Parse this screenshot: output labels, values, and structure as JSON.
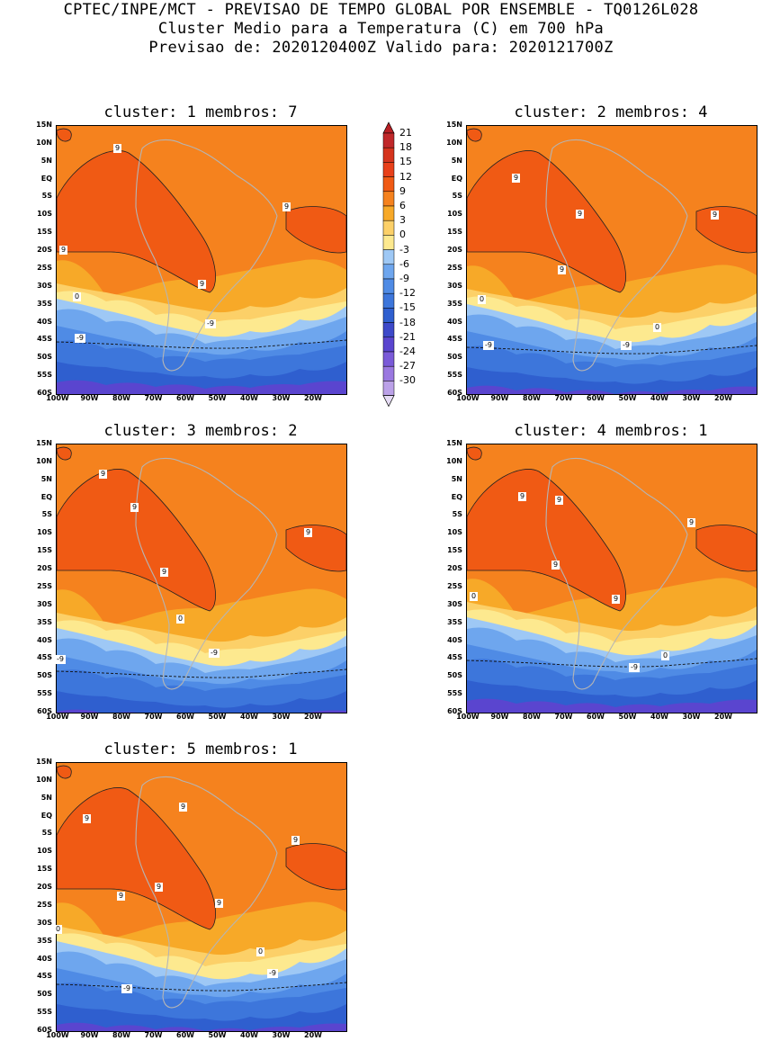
{
  "header": {
    "line1": "CPTEC/INPE/MCT - PREVISAO DE TEMPO GLOBAL POR ENSEMBLE - TQ0126L028",
    "line2": "Cluster Medio para a Temperatura (C) em 700 hPa",
    "line3": "Previsao de: 2020120400Z   Valido para: 2020121700Z"
  },
  "lat_ticks": [
    "15N",
    "10N",
    "5N",
    "EQ",
    "5S",
    "10S",
    "15S",
    "20S",
    "25S",
    "30S",
    "35S",
    "40S",
    "45S",
    "50S",
    "55S",
    "60S"
  ],
  "lon_ticks": [
    "100W",
    "90W",
    "80W",
    "70W",
    "60W",
    "50W",
    "40W",
    "30W",
    "20W"
  ],
  "colorbar": {
    "levels": [
      "21",
      "18",
      "15",
      "12",
      "9",
      "6",
      "3",
      "0",
      "-3",
      "-6",
      "-9",
      "-12",
      "-15",
      "-18",
      "-21",
      "-24",
      "-27",
      "-30"
    ],
    "colors": [
      "#c0282a",
      "#d5341d",
      "#e8401a",
      "#f05a14",
      "#f5821e",
      "#f7a928",
      "#fcd068",
      "#fde98f",
      "#9ec8f5",
      "#6ea6ee",
      "#4f8be5",
      "#3d76db",
      "#2f5fcf",
      "#3d49c9",
      "#5a45cf",
      "#7a5ad8",
      "#9a78e0",
      "#bba1e8"
    ]
  },
  "panels": [
    {
      "title": "cluster: 1   membros: 7",
      "labels": [
        "9",
        "9",
        "9",
        "9",
        "0",
        "-9",
        "-9"
      ]
    },
    {
      "title": "cluster: 2   membros: 4",
      "labels": [
        "9",
        "9",
        "9",
        "9",
        "0",
        "0",
        "-9",
        "-9"
      ]
    },
    {
      "title": "cluster: 3   membros: 2",
      "labels": [
        "9",
        "9",
        "9",
        "9",
        "0",
        "-9",
        "-9"
      ]
    },
    {
      "title": "cluster: 4   membros: 1",
      "labels": [
        "9",
        "9",
        "9",
        "9",
        "9",
        "0",
        "0",
        "-9"
      ]
    },
    {
      "title": "cluster: 5   membros: 1",
      "labels": [
        "9",
        "9",
        "9",
        "9",
        "9",
        "9",
        "0",
        "0",
        "-9",
        "-9"
      ]
    }
  ]
}
